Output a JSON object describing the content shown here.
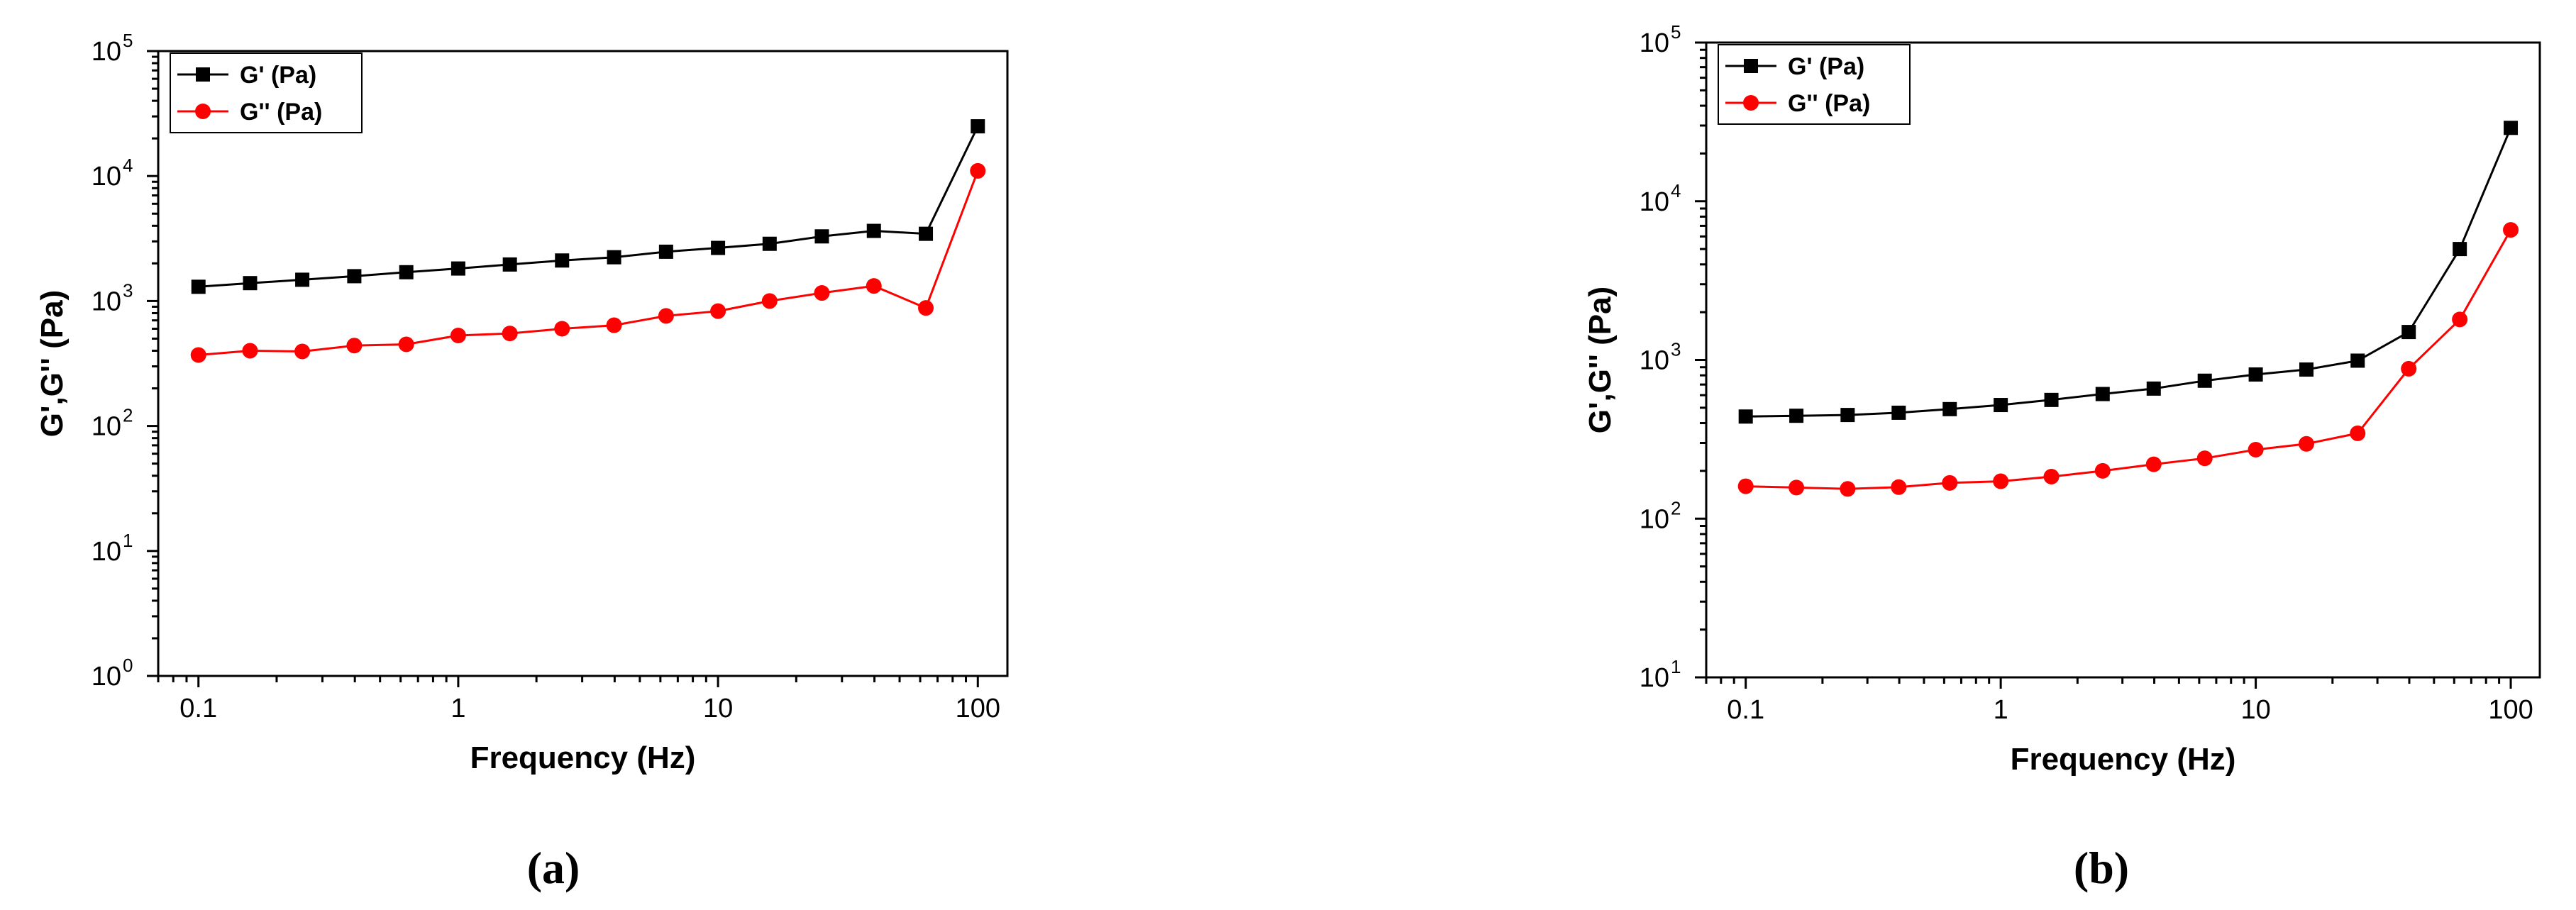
{
  "chart_data": [
    {
      "type": "line",
      "panel_label": "(a)",
      "xlabel": "Frequency (Hz)",
      "ylabel": "G',G'' (Pa)",
      "xscale": "log",
      "yscale": "log",
      "xlim": [
        0.07,
        130
      ],
      "ylim": [
        1,
        100000
      ],
      "x_ticks": [
        {
          "v": 0.1,
          "label": "0.1"
        },
        {
          "v": 1,
          "label": "1"
        },
        {
          "v": 10,
          "label": "10"
        },
        {
          "v": 100,
          "label": "100"
        }
      ],
      "y_ticks": [
        {
          "v": 1,
          "base": "10",
          "exp": "0"
        },
        {
          "v": 10,
          "base": "10",
          "exp": "1"
        },
        {
          "v": 100,
          "base": "10",
          "exp": "2"
        },
        {
          "v": 1000,
          "base": "10",
          "exp": "3"
        },
        {
          "v": 10000,
          "base": "10",
          "exp": "4"
        },
        {
          "v": 100000,
          "base": "10",
          "exp": "5"
        }
      ],
      "grid": false,
      "legend_position": "top-left",
      "x": [
        0.1,
        0.158,
        0.251,
        0.398,
        0.631,
        1,
        1.58,
        2.51,
        3.98,
        6.31,
        10,
        15.8,
        25.1,
        39.8,
        63.1,
        100
      ],
      "series": [
        {
          "name": "G' (Pa)",
          "color": "#000000",
          "marker": "square",
          "values": [
            1300,
            1390,
            1480,
            1580,
            1700,
            1820,
            1960,
            2110,
            2240,
            2480,
            2660,
            2870,
            3290,
            3640,
            3450,
            25000
          ]
        },
        {
          "name": "G'' (Pa)",
          "color": "#ff0000",
          "marker": "circle",
          "values": [
            370,
            400,
            395,
            440,
            450,
            530,
            550,
            600,
            640,
            760,
            830,
            1000,
            1160,
            1320,
            880,
            11000
          ]
        }
      ]
    },
    {
      "type": "line",
      "panel_label": "(b)",
      "xlabel": "Frequency (Hz)",
      "ylabel": "G',G'' (Pa)",
      "xscale": "log",
      "yscale": "log",
      "xlim": [
        0.07,
        130
      ],
      "ylim": [
        10,
        100000
      ],
      "x_ticks": [
        {
          "v": 0.1,
          "label": "0.1"
        },
        {
          "v": 1,
          "label": "1"
        },
        {
          "v": 10,
          "label": "10"
        },
        {
          "v": 100,
          "label": "100"
        }
      ],
      "y_ticks": [
        {
          "v": 10,
          "base": "10",
          "exp": "1"
        },
        {
          "v": 100,
          "base": "10",
          "exp": "2"
        },
        {
          "v": 1000,
          "base": "10",
          "exp": "3"
        },
        {
          "v": 10000,
          "base": "10",
          "exp": "4"
        },
        {
          "v": 100000,
          "base": "10",
          "exp": "5"
        }
      ],
      "grid": false,
      "legend_position": "top-left",
      "x": [
        0.1,
        0.158,
        0.251,
        0.398,
        0.631,
        1,
        1.58,
        2.51,
        3.98,
        6.31,
        10,
        15.8,
        25.1,
        39.8,
        63.1,
        100
      ],
      "series": [
        {
          "name": "G' (Pa)",
          "color": "#000000",
          "marker": "square",
          "values": [
            440,
            445,
            450,
            465,
            490,
            520,
            560,
            610,
            660,
            740,
            810,
            870,
            990,
            1500,
            5000,
            29000
          ]
        },
        {
          "name": "G'' (Pa)",
          "color": "#ff0000",
          "marker": "circle",
          "values": [
            160,
            157,
            154,
            158,
            168,
            172,
            184,
            200,
            220,
            240,
            272,
            296,
            345,
            880,
            1800,
            6600
          ]
        }
      ]
    }
  ]
}
